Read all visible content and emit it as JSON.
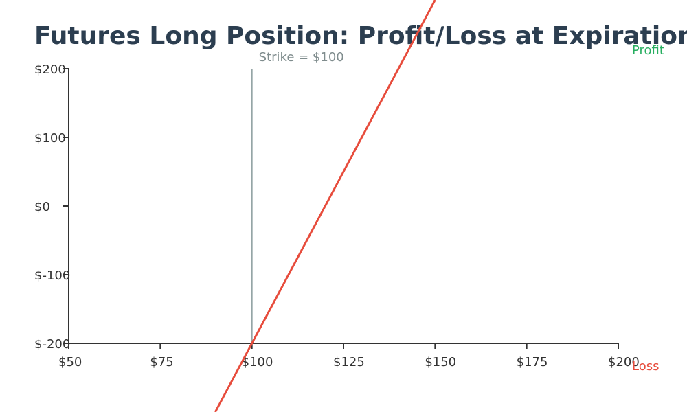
{
  "chart_data": {
    "type": "line",
    "title": "Futures Long Position: Profit/Loss at Expiration",
    "xlabel": "",
    "ylabel": "",
    "xlim": [
      50,
      200
    ],
    "ylim": [
      -200,
      200
    ],
    "x_ticks": [
      50,
      75,
      100,
      125,
      150,
      175,
      200
    ],
    "x_tick_labels": [
      "$50",
      "$75",
      "$100",
      "$125",
      "$150",
      "$175",
      "$200"
    ],
    "y_ticks": [
      200,
      100,
      0,
      -100,
      -200
    ],
    "y_tick_labels": [
      "$200",
      "$100",
      "$0",
      "$-100",
      "$-200"
    ],
    "grid": false,
    "series": [
      {
        "color": "#e74c3c",
        "x": [
          90,
          100,
          150
        ],
        "y": [
          -300,
          -200,
          300
        ]
      }
    ],
    "vline": {
      "x": 100,
      "label": "Strike = $100",
      "color": "#95a5a6"
    },
    "annotations": {
      "profit": "Profit",
      "loss": "Loss"
    },
    "colors": {
      "title": "#2c3e50",
      "axis": "#333333",
      "profit": "#27ae60",
      "loss": "#e74c3c",
      "strike_label": "#7f8c8d"
    }
  }
}
